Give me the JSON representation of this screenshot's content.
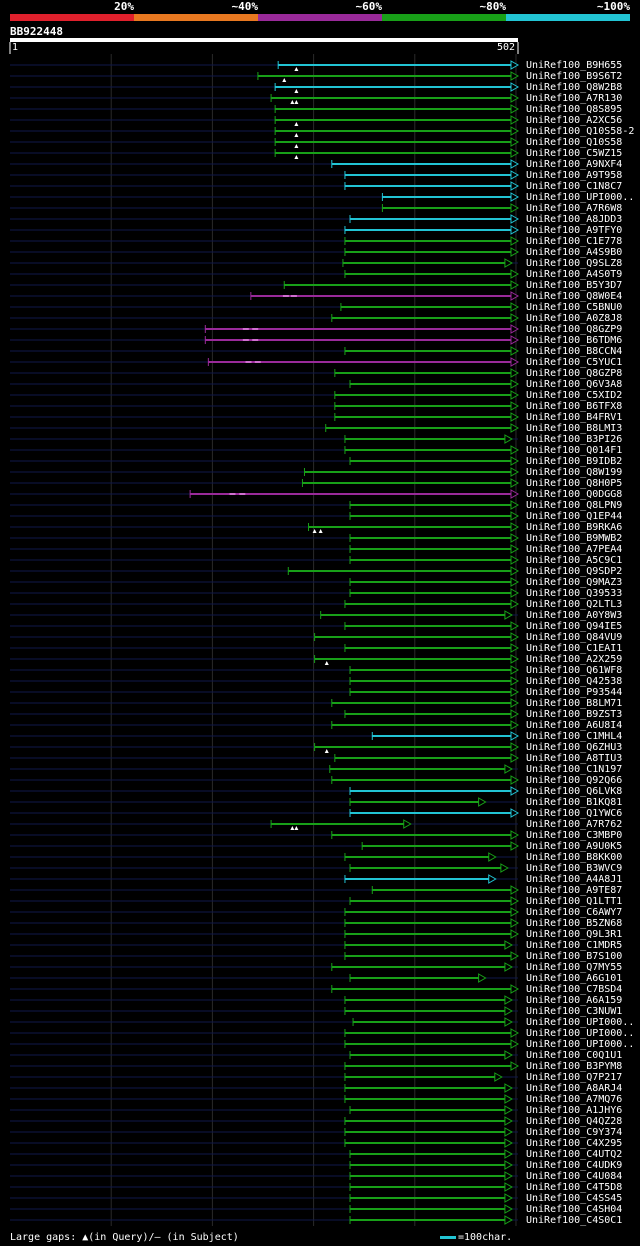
{
  "legend": [
    {
      "label": "20%",
      "color": "#e0202c"
    },
    {
      "label": "~40%",
      "color": "#e87820"
    },
    {
      "label": "~60%",
      "color": "#9a2a9a"
    },
    {
      "label": "~80%",
      "color": "#18a018"
    },
    {
      "label": "~100%",
      "color": "#22c4d4"
    }
  ],
  "query": {
    "name": "BB922448",
    "start": "1",
    "end": "502",
    "length": 502
  },
  "hits": [
    {
      "id": "UniRef100_B9H655",
      "start": 265,
      "end": 502,
      "color": "cyan",
      "gaps": [
        283
      ]
    },
    {
      "id": "UniRef100_B9S6T2",
      "start": 245,
      "end": 502,
      "color": "green",
      "gaps": [
        271
      ]
    },
    {
      "id": "UniRef100_Q8W2B8",
      "start": 262,
      "end": 502,
      "color": "cyan",
      "gaps": [
        283
      ]
    },
    {
      "id": "UniRef100_A7R130",
      "start": 258,
      "end": 502,
      "color": "green",
      "gaps": [
        279,
        283
      ]
    },
    {
      "id": "UniRef100_Q8S895",
      "start": 262,
      "end": 502,
      "color": "green",
      "gaps": []
    },
    {
      "id": "UniRef100_A2XC56",
      "start": 262,
      "end": 502,
      "color": "green",
      "gaps": [
        283
      ]
    },
    {
      "id": "UniRef100_Q10S58-2",
      "start": 262,
      "end": 502,
      "color": "green",
      "gaps": [
        283
      ]
    },
    {
      "id": "UniRef100_Q10S58",
      "start": 262,
      "end": 502,
      "color": "green",
      "gaps": [
        283
      ]
    },
    {
      "id": "UniRef100_C5WZ15",
      "start": 262,
      "end": 502,
      "color": "green",
      "gaps": [
        283
      ]
    },
    {
      "id": "UniRef100_A9NXF4",
      "start": 318,
      "end": 502,
      "color": "cyan",
      "gaps": []
    },
    {
      "id": "UniRef100_A9T958",
      "start": 331,
      "end": 502,
      "color": "cyan",
      "gaps": []
    },
    {
      "id": "UniRef100_C1N8C7",
      "start": 331,
      "end": 502,
      "color": "cyan",
      "gaps": []
    },
    {
      "id": "UniRef100_UPI000..",
      "start": 368,
      "end": 502,
      "color": "cyan",
      "gaps": []
    },
    {
      "id": "UniRef100_A7R6W8",
      "start": 368,
      "end": 502,
      "color": "green",
      "gaps": []
    },
    {
      "id": "UniRef100_A8JDD3",
      "start": 336,
      "end": 502,
      "color": "cyan",
      "gaps": []
    },
    {
      "id": "UniRef100_A9TFY0",
      "start": 331,
      "end": 502,
      "color": "cyan",
      "gaps": []
    },
    {
      "id": "UniRef100_C1E778",
      "start": 331,
      "end": 502,
      "color": "green",
      "gaps": []
    },
    {
      "id": "UniRef100_A4S9B0",
      "start": 331,
      "end": 502,
      "color": "green",
      "gaps": []
    },
    {
      "id": "UniRef100_Q9SLZ8",
      "start": 329,
      "end": 496,
      "color": "green",
      "gaps": []
    },
    {
      "id": "UniRef100_A4S0T9",
      "start": 331,
      "end": 502,
      "color": "green",
      "gaps": []
    },
    {
      "id": "UniRef100_B5Y3D7",
      "start": 271,
      "end": 502,
      "color": "green",
      "gaps": []
    },
    {
      "id": "UniRef100_Q8W0E4",
      "start": 238,
      "end": 502,
      "color": "purple",
      "gaps": []
    },
    {
      "id": "UniRef100_C5BNU0",
      "start": 327,
      "end": 502,
      "color": "green",
      "gaps": []
    },
    {
      "id": "UniRef100_A0Z8J8",
      "start": 318,
      "end": 502,
      "color": "green",
      "gaps": []
    },
    {
      "id": "UniRef100_Q8GZP9",
      "start": 193,
      "end": 502,
      "color": "purple",
      "gaps": []
    },
    {
      "id": "UniRef100_B6TDM6",
      "start": 193,
      "end": 502,
      "color": "purple",
      "gaps": []
    },
    {
      "id": "UniRef100_B8CCN4",
      "start": 331,
      "end": 502,
      "color": "green",
      "gaps": []
    },
    {
      "id": "UniRef100_C5YUC1",
      "start": 196,
      "end": 502,
      "color": "purple",
      "gaps": []
    },
    {
      "id": "UniRef100_Q8GZP8",
      "start": 321,
      "end": 502,
      "color": "green",
      "gaps": []
    },
    {
      "id": "UniRef100_Q6V3A8",
      "start": 336,
      "end": 502,
      "color": "green",
      "gaps": []
    },
    {
      "id": "UniRef100_C5XID2",
      "start": 321,
      "end": 502,
      "color": "green",
      "gaps": []
    },
    {
      "id": "UniRef100_B6TFX8",
      "start": 321,
      "end": 502,
      "color": "green",
      "gaps": []
    },
    {
      "id": "UniRef100_B4FRV1",
      "start": 321,
      "end": 502,
      "color": "green",
      "gaps": []
    },
    {
      "id": "UniRef100_B8LMI3",
      "start": 312,
      "end": 502,
      "color": "green",
      "gaps": []
    },
    {
      "id": "UniRef100_B3PI26",
      "start": 331,
      "end": 496,
      "color": "green",
      "gaps": []
    },
    {
      "id": "UniRef100_Q014F1",
      "start": 331,
      "end": 502,
      "color": "green",
      "gaps": []
    },
    {
      "id": "UniRef100_B9IDB2",
      "start": 336,
      "end": 502,
      "color": "green",
      "gaps": []
    },
    {
      "id": "UniRef100_Q8W199",
      "start": 291,
      "end": 502,
      "color": "green",
      "gaps": []
    },
    {
      "id": "UniRef100_Q8H0P5",
      "start": 289,
      "end": 502,
      "color": "green",
      "gaps": []
    },
    {
      "id": "UniRef100_Q0DGG8",
      "start": 178,
      "end": 502,
      "color": "purple",
      "gaps": []
    },
    {
      "id": "UniRef100_Q8LPN9",
      "start": 336,
      "end": 502,
      "color": "green",
      "gaps": []
    },
    {
      "id": "UniRef100_Q1EP44",
      "start": 336,
      "end": 502,
      "color": "green",
      "gaps": []
    },
    {
      "id": "UniRef100_B9RKA6",
      "start": 295,
      "end": 502,
      "color": "green",
      "gaps": [
        301,
        307
      ]
    },
    {
      "id": "UniRef100_B9MWB2",
      "start": 336,
      "end": 502,
      "color": "green",
      "gaps": []
    },
    {
      "id": "UniRef100_A7PEA4",
      "start": 336,
      "end": 502,
      "color": "green",
      "gaps": []
    },
    {
      "id": "UniRef100_A5C9C1",
      "start": 336,
      "end": 502,
      "color": "green",
      "gaps": []
    },
    {
      "id": "UniRef100_Q9SDP2",
      "start": 275,
      "end": 502,
      "color": "green",
      "gaps": []
    },
    {
      "id": "UniRef100_Q9MAZ3",
      "start": 336,
      "end": 502,
      "color": "green",
      "gaps": []
    },
    {
      "id": "UniRef100_Q39533",
      "start": 336,
      "end": 502,
      "color": "green",
      "gaps": []
    },
    {
      "id": "UniRef100_Q2LTL3",
      "start": 331,
      "end": 502,
      "color": "green",
      "gaps": []
    },
    {
      "id": "UniRef100_A0Y8W3",
      "start": 307,
      "end": 496,
      "color": "green",
      "gaps": []
    },
    {
      "id": "UniRef100_Q94IE5",
      "start": 331,
      "end": 502,
      "color": "green",
      "gaps": []
    },
    {
      "id": "UniRef100_Q84VU9",
      "start": 301,
      "end": 502,
      "color": "green",
      "gaps": []
    },
    {
      "id": "UniRef100_C1EAI1",
      "start": 331,
      "end": 502,
      "color": "green",
      "gaps": []
    },
    {
      "id": "UniRef100_A2X259",
      "start": 301,
      "end": 502,
      "color": "green",
      "gaps": [
        313
      ]
    },
    {
      "id": "UniRef100_Q61WF8",
      "start": 336,
      "end": 502,
      "color": "green",
      "gaps": []
    },
    {
      "id": "UniRef100_Q42538",
      "start": 336,
      "end": 502,
      "color": "green",
      "gaps": []
    },
    {
      "id": "UniRef100_P93544",
      "start": 336,
      "end": 502,
      "color": "green",
      "gaps": []
    },
    {
      "id": "UniRef100_B8LM71",
      "start": 318,
      "end": 502,
      "color": "green",
      "gaps": []
    },
    {
      "id": "UniRef100_B9ZST3",
      "start": 331,
      "end": 502,
      "color": "green",
      "gaps": []
    },
    {
      "id": "UniRef100_A6U8I4",
      "start": 318,
      "end": 502,
      "color": "green",
      "gaps": []
    },
    {
      "id": "UniRef100_C1MHL4",
      "start": 358,
      "end": 502,
      "color": "cyan",
      "gaps": []
    },
    {
      "id": "UniRef100_Q6ZHU3",
      "start": 301,
      "end": 502,
      "color": "green",
      "gaps": [
        313
      ]
    },
    {
      "id": "UniRef100_A8TIU3",
      "start": 321,
      "end": 502,
      "color": "green",
      "gaps": []
    },
    {
      "id": "UniRef100_C1N197",
      "start": 316,
      "end": 496,
      "color": "green",
      "gaps": []
    },
    {
      "id": "UniRef100_Q92Q66",
      "start": 318,
      "end": 502,
      "color": "green",
      "gaps": []
    },
    {
      "id": "UniRef100_Q6LVK8",
      "start": 336,
      "end": 502,
      "color": "cyan",
      "gaps": []
    },
    {
      "id": "UniRef100_B1KQ81",
      "start": 336,
      "end": 470,
      "color": "green",
      "gaps": []
    },
    {
      "id": "UniRef100_Q1YWC6",
      "start": 336,
      "end": 502,
      "color": "cyan",
      "gaps": []
    },
    {
      "id": "UniRef100_A7R762",
      "start": 258,
      "end": 396,
      "color": "green",
      "gaps": [
        279,
        283
      ]
    },
    {
      "id": "UniRef100_C3MBP0",
      "start": 318,
      "end": 502,
      "color": "green",
      "gaps": []
    },
    {
      "id": "UniRef100_A9U0K5",
      "start": 348,
      "end": 502,
      "color": "green",
      "gaps": []
    },
    {
      "id": "UniRef100_B8KK00",
      "start": 331,
      "end": 480,
      "color": "green",
      "gaps": []
    },
    {
      "id": "UniRef100_B3WVC9",
      "start": 336,
      "end": 492,
      "color": "green",
      "gaps": []
    },
    {
      "id": "UniRef100_A4A8J1",
      "start": 331,
      "end": 480,
      "color": "cyan",
      "gaps": []
    },
    {
      "id": "UniRef100_A9TE87",
      "start": 358,
      "end": 502,
      "color": "green",
      "gaps": []
    },
    {
      "id": "UniRef100_Q1LTT1",
      "start": 336,
      "end": 502,
      "color": "green",
      "gaps": []
    },
    {
      "id": "UniRef100_C6AWY7",
      "start": 331,
      "end": 502,
      "color": "green",
      "gaps": []
    },
    {
      "id": "UniRef100_B5ZN68",
      "start": 331,
      "end": 502,
      "color": "green",
      "gaps": []
    },
    {
      "id": "UniRef100_Q9L3R1",
      "start": 331,
      "end": 502,
      "color": "green",
      "gaps": []
    },
    {
      "id": "UniRef100_C1MDR5",
      "start": 331,
      "end": 496,
      "color": "green",
      "gaps": []
    },
    {
      "id": "UniRef100_B7S100",
      "start": 331,
      "end": 502,
      "color": "green",
      "gaps": []
    },
    {
      "id": "UniRef100_Q7MY55",
      "start": 318,
      "end": 496,
      "color": "green",
      "gaps": []
    },
    {
      "id": "UniRef100_A6G101",
      "start": 336,
      "end": 470,
      "color": "green",
      "gaps": []
    },
    {
      "id": "UniRef100_C7BSD4",
      "start": 318,
      "end": 502,
      "color": "green",
      "gaps": []
    },
    {
      "id": "UniRef100_A6A159",
      "start": 331,
      "end": 496,
      "color": "green",
      "gaps": []
    },
    {
      "id": "UniRef100_C3NUW1",
      "start": 331,
      "end": 496,
      "color": "green",
      "gaps": []
    },
    {
      "id": "UniRef100_UPI000..",
      "start": 339,
      "end": 496,
      "color": "green",
      "gaps": []
    },
    {
      "id": "UniRef100_UPI000..",
      "start": 331,
      "end": 502,
      "color": "green",
      "gaps": []
    },
    {
      "id": "UniRef100_UPI000..",
      "start": 331,
      "end": 502,
      "color": "green",
      "gaps": []
    },
    {
      "id": "UniRef100_C0Q1U1",
      "start": 336,
      "end": 496,
      "color": "green",
      "gaps": []
    },
    {
      "id": "UniRef100_B3PYM8",
      "start": 331,
      "end": 502,
      "color": "green",
      "gaps": []
    },
    {
      "id": "UniRef100_Q7P217",
      "start": 331,
      "end": 486,
      "color": "green",
      "gaps": []
    },
    {
      "id": "UniRef100_A8ARJ4",
      "start": 331,
      "end": 496,
      "color": "green",
      "gaps": []
    },
    {
      "id": "UniRef100_A7MQ76",
      "start": 331,
      "end": 496,
      "color": "green",
      "gaps": []
    },
    {
      "id": "UniRef100_A1JHY6",
      "start": 336,
      "end": 496,
      "color": "green",
      "gaps": []
    },
    {
      "id": "UniRef100_Q4QZ28",
      "start": 331,
      "end": 496,
      "color": "green",
      "gaps": []
    },
    {
      "id": "UniRef100_C9Y374",
      "start": 331,
      "end": 496,
      "color": "green",
      "gaps": []
    },
    {
      "id": "UniRef100_C4X295",
      "start": 331,
      "end": 496,
      "color": "green",
      "gaps": []
    },
    {
      "id": "UniRef100_C4UTQ2",
      "start": 336,
      "end": 496,
      "color": "green",
      "gaps": []
    },
    {
      "id": "UniRef100_C4UDK9",
      "start": 336,
      "end": 496,
      "color": "green",
      "gaps": []
    },
    {
      "id": "UniRef100_C4U084",
      "start": 336,
      "end": 496,
      "color": "green",
      "gaps": []
    },
    {
      "id": "UniRef100_C4T5D8",
      "start": 336,
      "end": 496,
      "color": "green",
      "gaps": []
    },
    {
      "id": "UniRef100_C4SS45",
      "start": 336,
      "end": 496,
      "color": "green",
      "gaps": []
    },
    {
      "id": "UniRef100_C4SH04",
      "start": 336,
      "end": 496,
      "color": "green",
      "gaps": []
    },
    {
      "id": "UniRef100_C4S0C1",
      "start": 336,
      "end": 496,
      "color": "green",
      "gaps": []
    }
  ],
  "colors": {
    "cyan": "#22c4d4",
    "green": "#18a018",
    "purple": "#9a2a9a",
    "track": "#10184a",
    "grid": "#2a2a2a"
  },
  "footer": {
    "text": "Large gaps: ▲(in Query)/— (in Subject)"
  },
  "scale_key": {
    "text": "=100char."
  }
}
